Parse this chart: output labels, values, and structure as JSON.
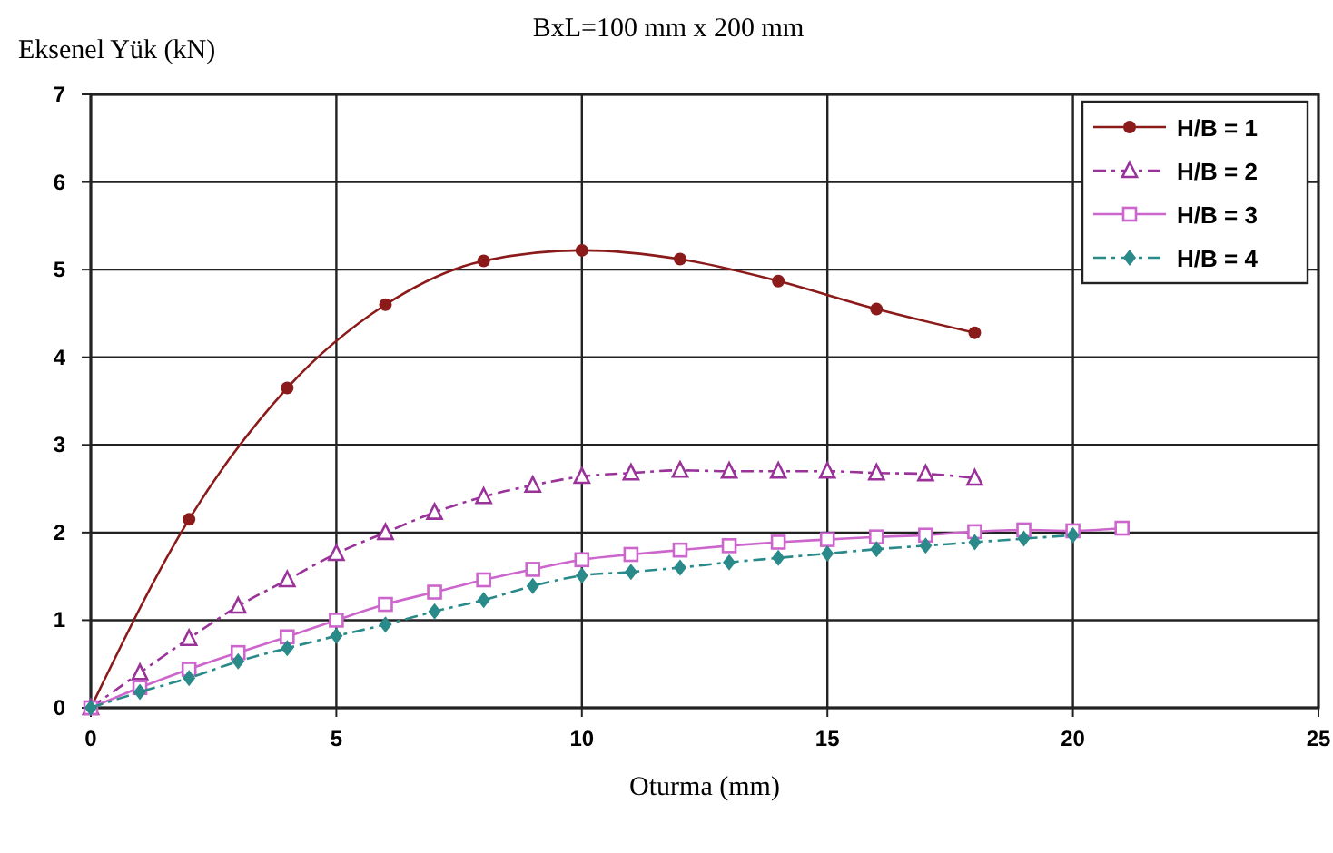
{
  "chart_data": {
    "type": "line",
    "title": "BxL=100 mm x 200 mm",
    "xlabel": "Oturma (mm)",
    "ylabel": "Eksenel Yük (kN)",
    "xlim": [
      0,
      25
    ],
    "xticks": [
      0,
      5,
      10,
      15,
      20,
      25
    ],
    "ylim": [
      0,
      7
    ],
    "yticks": [
      0,
      1,
      2,
      3,
      4,
      5,
      6,
      7
    ],
    "grid": true,
    "legend": "top right",
    "series": [
      {
        "name": "H/B = 1",
        "color": "#8b1a1a",
        "marker": "circle",
        "line_style": "solid",
        "x": [
          0,
          2,
          4,
          6,
          8,
          10,
          12,
          14,
          16,
          18
        ],
        "values": [
          0,
          2.15,
          3.65,
          4.6,
          5.1,
          5.22,
          5.12,
          4.87,
          4.55,
          4.28
        ]
      },
      {
        "name": "H/B = 2",
        "color": "#993399",
        "marker": "triangle",
        "line_style": "dashed",
        "x": [
          0,
          1,
          2,
          3,
          4,
          5,
          6,
          7,
          8,
          9,
          10,
          11,
          12,
          13,
          14,
          15,
          16,
          17,
          18
        ],
        "values": [
          0,
          0.4,
          0.79,
          1.16,
          1.46,
          1.76,
          2.0,
          2.23,
          2.41,
          2.54,
          2.64,
          2.68,
          2.71,
          2.7,
          2.7,
          2.7,
          2.68,
          2.67,
          2.62
        ]
      },
      {
        "name": "H/B = 3",
        "color": "#cc66cc",
        "marker": "square",
        "line_style": "solid",
        "x": [
          0,
          1,
          2,
          3,
          4,
          5,
          6,
          7,
          8,
          9,
          10,
          11,
          12,
          13,
          14,
          15,
          16,
          17,
          18,
          19,
          20,
          21
        ],
        "values": [
          0,
          0.23,
          0.44,
          0.63,
          0.81,
          1.0,
          1.18,
          1.32,
          1.46,
          1.58,
          1.69,
          1.75,
          1.8,
          1.85,
          1.89,
          1.92,
          1.95,
          1.97,
          2.01,
          2.03,
          2.02,
          2.05
        ]
      },
      {
        "name": "H/B = 4",
        "color": "#2a8a8a",
        "marker": "diamond",
        "line_style": "dashed",
        "x": [
          0,
          1,
          2,
          3,
          4,
          5,
          6,
          7,
          8,
          9,
          10,
          11,
          12,
          13,
          14,
          15,
          16,
          17,
          18,
          19,
          20
        ],
        "values": [
          0,
          0.18,
          0.34,
          0.53,
          0.68,
          0.82,
          0.95,
          1.1,
          1.23,
          1.39,
          1.51,
          1.55,
          1.6,
          1.66,
          1.71,
          1.76,
          1.81,
          1.85,
          1.89,
          1.93,
          1.97
        ]
      }
    ]
  }
}
